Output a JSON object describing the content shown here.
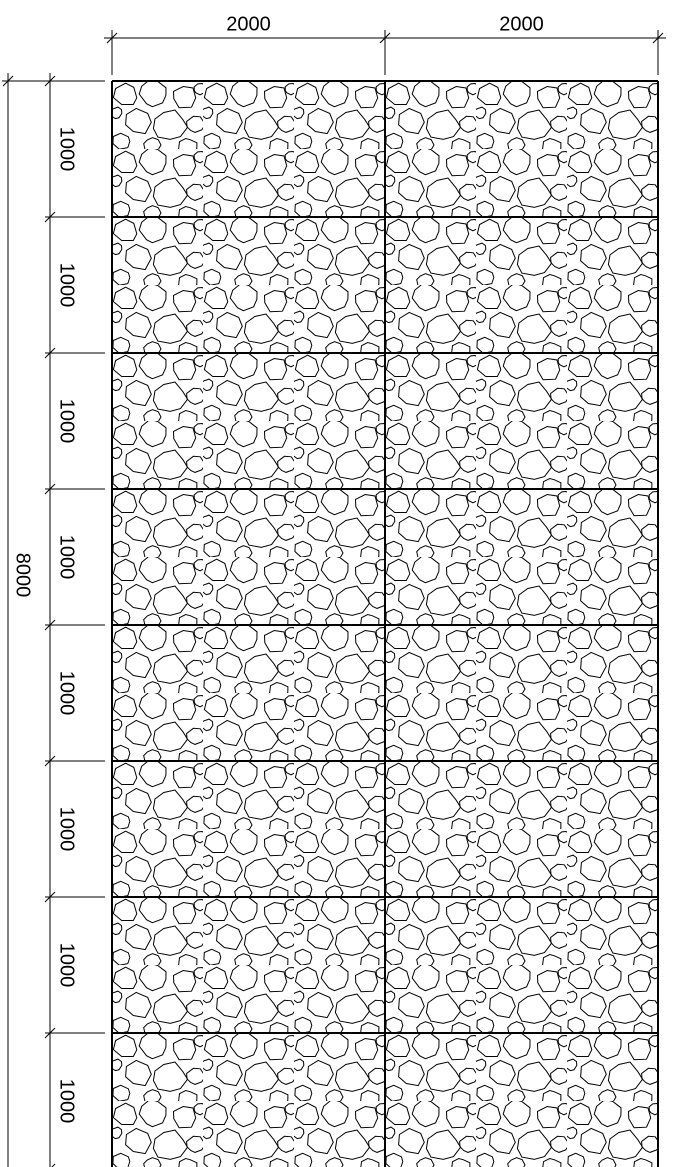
{
  "dimensions": {
    "top": [
      2000,
      2000
    ],
    "left": [
      1000,
      1000,
      1000,
      1000,
      1000,
      1000,
      1000,
      1000
    ],
    "overall": 8000
  }
}
